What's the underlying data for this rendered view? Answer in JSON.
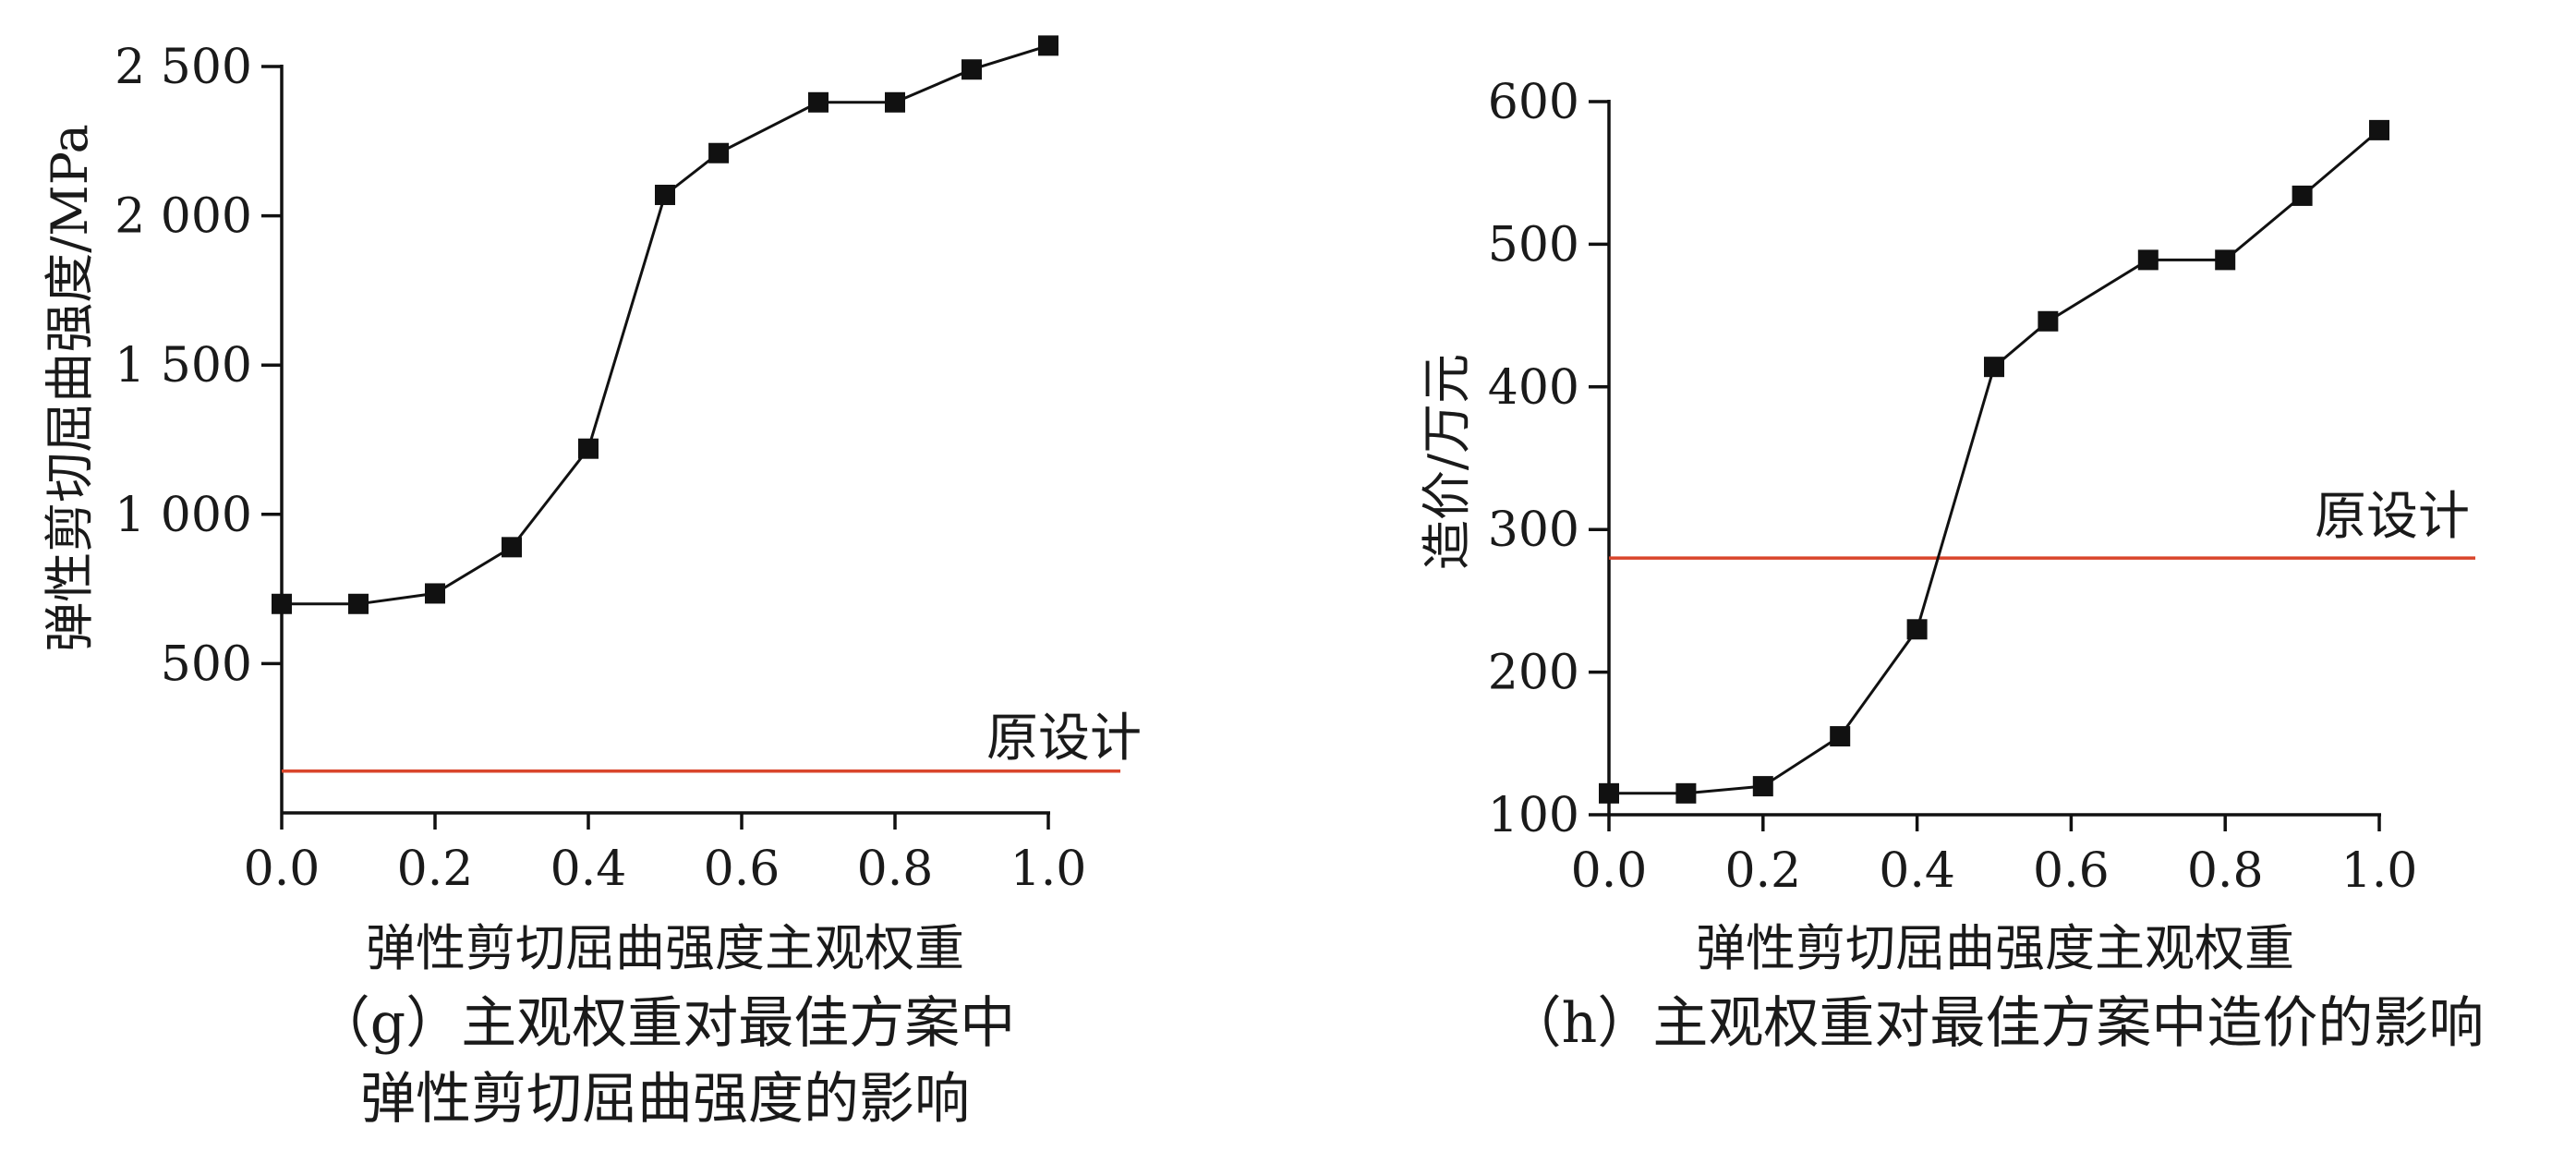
{
  "chart_data": [
    {
      "type": "line",
      "panel": "g",
      "caption_lines": [
        "（g）主观权重对最佳方案中",
        "弹性剪切屈曲强度的影响"
      ],
      "xlabel": "弹性剪切屈曲强度主观权重",
      "ylabel": "弹性剪切屈曲强度/MPa",
      "xlim": [
        0.0,
        1.0
      ],
      "ylim": [
        0,
        2500
      ],
      "x_ticks": [
        {
          "v": 0.0,
          "label": "0.0"
        },
        {
          "v": 0.2,
          "label": "0.2"
        },
        {
          "v": 0.4,
          "label": "0.4"
        },
        {
          "v": 0.6,
          "label": "0.6"
        },
        {
          "v": 0.8,
          "label": "0.8"
        },
        {
          "v": 1.0,
          "label": "1.0"
        }
      ],
      "y_ticks": [
        {
          "v": 500,
          "label": "500"
        },
        {
          "v": 1000,
          "label": "1 000"
        },
        {
          "v": 1500,
          "label": "1 500"
        },
        {
          "v": 2000,
          "label": "2 000"
        },
        {
          "v": 2500,
          "label": "2 500"
        }
      ],
      "series": [
        {
          "x": [
            0.0,
            0.1,
            0.2,
            0.3,
            0.4,
            0.5,
            0.57,
            0.7,
            0.8,
            0.9,
            1.0
          ],
          "y": [
            700,
            700,
            735,
            890,
            1220,
            2070,
            2210,
            2380,
            2380,
            2490,
            2570
          ],
          "color": "#111111",
          "marker": "square"
        }
      ],
      "reference_line": {
        "label": "原设计",
        "y": 140,
        "color": "#d9452b"
      }
    },
    {
      "type": "line",
      "panel": "h",
      "caption_lines": [
        "（h）主观权重对最佳方案中造价的影响"
      ],
      "xlabel": "弹性剪切屈曲强度主观权重",
      "ylabel": "造价/万元",
      "xlim": [
        0.0,
        1.0
      ],
      "ylim": [
        100,
        600
      ],
      "x_ticks": [
        {
          "v": 0.0,
          "label": "0.0"
        },
        {
          "v": 0.2,
          "label": "0.2"
        },
        {
          "v": 0.4,
          "label": "0.4"
        },
        {
          "v": 0.6,
          "label": "0.6"
        },
        {
          "v": 0.8,
          "label": "0.8"
        },
        {
          "v": 1.0,
          "label": "1.0"
        }
      ],
      "y_ticks": [
        {
          "v": 100,
          "label": "100"
        },
        {
          "v": 200,
          "label": "200"
        },
        {
          "v": 300,
          "label": "300"
        },
        {
          "v": 400,
          "label": "400"
        },
        {
          "v": 500,
          "label": "500"
        },
        {
          "v": 600,
          "label": "600"
        }
      ],
      "series": [
        {
          "x": [
            0.0,
            0.1,
            0.2,
            0.3,
            0.4,
            0.5,
            0.57,
            0.7,
            0.8,
            0.9,
            1.0
          ],
          "y": [
            115,
            115,
            120,
            155,
            230,
            414,
            446,
            489,
            489,
            534,
            580
          ],
          "color": "#111111",
          "marker": "square"
        }
      ],
      "reference_line": {
        "label": "原设计",
        "y": 280,
        "color": "#d9452b"
      }
    }
  ]
}
